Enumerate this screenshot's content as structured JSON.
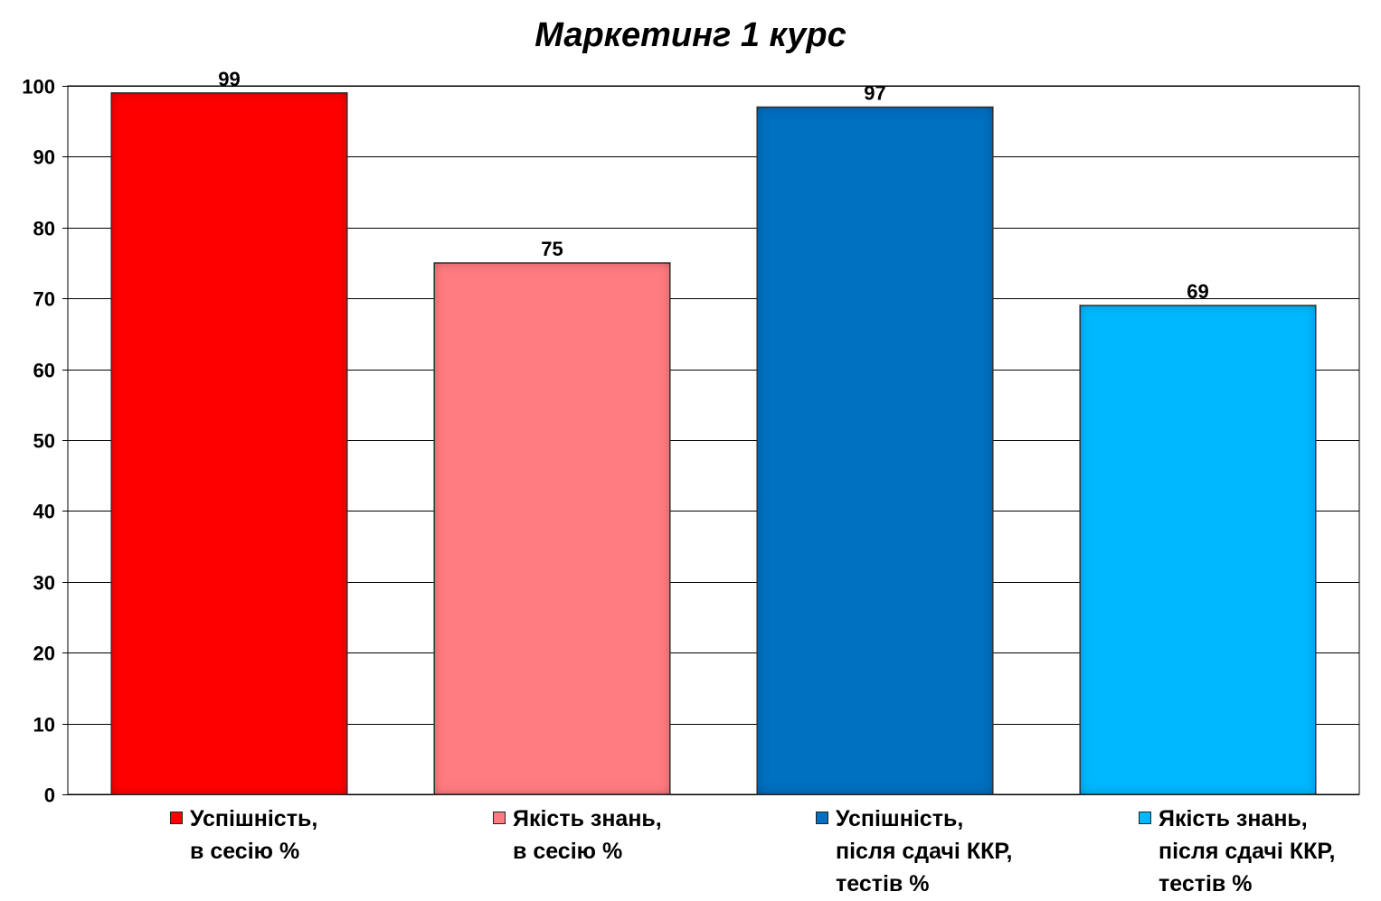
{
  "chart_data": {
    "type": "bar",
    "title": "Маркетинг 1 курс",
    "xlabel": "",
    "ylabel": "",
    "ylim": [
      0,
      100
    ],
    "yticks": [
      0,
      10,
      20,
      30,
      40,
      50,
      60,
      70,
      80,
      90,
      100
    ],
    "grid": true,
    "legend_position": "bottom",
    "series": [
      {
        "name": "Успішність,\nв сесію %",
        "value": 99,
        "color": "#ff0000"
      },
      {
        "name": "Якість знань,\nв сесію %",
        "value": 75,
        "color": "#ff7c80"
      },
      {
        "name": "Успішність,\nпісля сдачі ККР,\nтестів %",
        "value": 97,
        "color": "#0070c0"
      },
      {
        "name": "Якість знань,\nпісля сдачі ККР,\nтестів %",
        "value": 69,
        "color": "#00b8ff"
      }
    ]
  }
}
